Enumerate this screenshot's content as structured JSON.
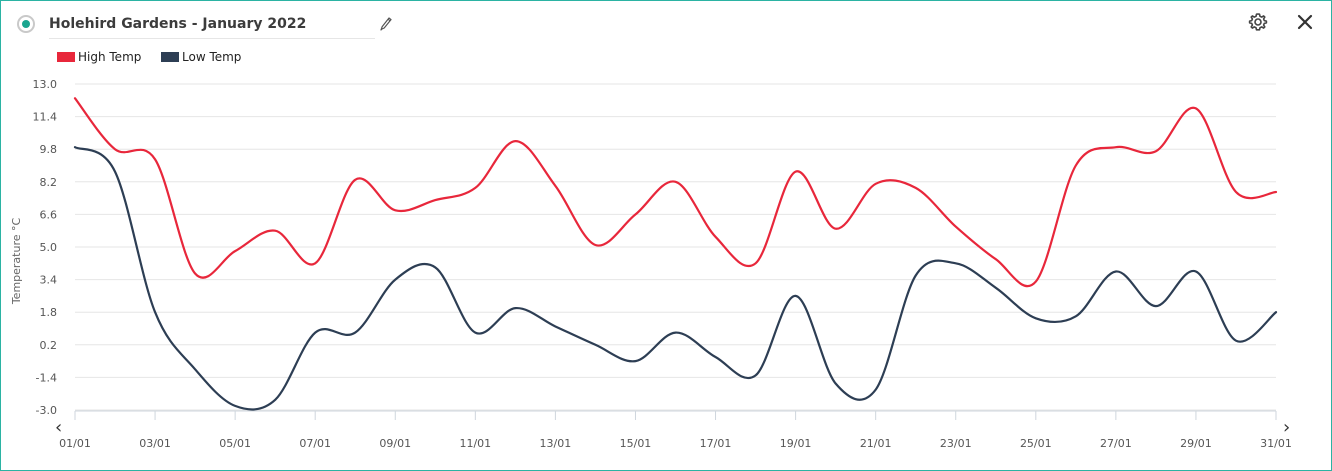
{
  "header": {
    "title": "Holehird Gardens - January 2022",
    "icons": [
      "radio-selected-icon",
      "pencil-icon",
      "gear-icon",
      "close-icon"
    ]
  },
  "navigation": {
    "prev": "‹",
    "next": "›"
  },
  "chart_data": {
    "type": "line",
    "title": "",
    "xlabel": "",
    "ylabel": "Temperature °C",
    "x": [
      "01/01",
      "02/01",
      "03/01",
      "04/01",
      "05/01",
      "06/01",
      "07/01",
      "08/01",
      "09/01",
      "10/01",
      "11/01",
      "12/01",
      "13/01",
      "14/01",
      "15/01",
      "16/01",
      "17/01",
      "18/01",
      "19/01",
      "20/01",
      "21/01",
      "22/01",
      "23/01",
      "24/01",
      "25/01",
      "26/01",
      "27/01",
      "28/01",
      "29/01",
      "30/01",
      "31/01"
    ],
    "x_tick_labels": [
      "01/01",
      "03/01",
      "05/01",
      "07/01",
      "09/01",
      "11/01",
      "13/01",
      "15/01",
      "17/01",
      "19/01",
      "21/01",
      "23/01",
      "25/01",
      "27/01",
      "29/01",
      "31/01"
    ],
    "y_ticks": [
      "13.0",
      "11.4",
      "9.8",
      "8.2",
      "6.6",
      "5.0",
      "3.4",
      "1.8",
      "0.2",
      "-1.4",
      "-3.0"
    ],
    "ylim": [
      -3.0,
      13.0
    ],
    "grid": true,
    "legend_position": "top-left",
    "series": [
      {
        "name": "High Temp",
        "color": "#e8273b",
        "points": [
          [
            "01/01",
            12.3
          ],
          [
            "02/01",
            9.8
          ],
          [
            "03/01",
            9.3
          ],
          [
            "04/01",
            3.7
          ],
          [
            "05/01",
            4.8
          ],
          [
            "06/01",
            5.8
          ],
          [
            "07/01",
            4.2
          ],
          [
            "08/01",
            8.3
          ],
          [
            "09/01",
            6.8
          ],
          [
            "10/01",
            7.3
          ],
          [
            "11/01",
            7.9
          ],
          [
            "12/01",
            10.2
          ],
          [
            "13/01",
            8.0
          ],
          [
            "14/01",
            5.1
          ],
          [
            "15/01",
            6.6
          ],
          [
            "16/01",
            8.2
          ],
          [
            "17/01",
            5.5
          ],
          [
            "18/01",
            4.2
          ],
          [
            "19/01",
            8.7
          ],
          [
            "20/01",
            5.9
          ],
          [
            "21/01",
            8.1
          ],
          [
            "22/01",
            7.9
          ],
          [
            "23/01",
            6.0
          ],
          [
            "24/01",
            4.4
          ],
          [
            "25/01",
            3.3
          ],
          [
            "26/01",
            9.0
          ],
          [
            "27/01",
            9.9
          ],
          [
            "28/01",
            9.7
          ],
          [
            "29/01",
            11.8
          ],
          [
            "30/01",
            7.7
          ],
          [
            "31/01",
            7.7
          ]
        ]
      },
      {
        "name": "Low Temp",
        "color": "#2d3e54",
        "points": [
          [
            "01/01",
            9.9
          ],
          [
            "02/01",
            8.7
          ],
          [
            "03/01",
            1.8
          ],
          [
            "04/01",
            -1.0
          ],
          [
            "05/01",
            -2.8
          ],
          [
            "06/01",
            -2.5
          ],
          [
            "07/01",
            0.8
          ],
          [
            "08/01",
            0.8
          ],
          [
            "09/01",
            3.4
          ],
          [
            "10/01",
            4.0
          ],
          [
            "11/01",
            0.8
          ],
          [
            "12/01",
            2.0
          ],
          [
            "13/01",
            1.1
          ],
          [
            "14/01",
            0.2
          ],
          [
            "15/01",
            -0.6
          ],
          [
            "16/01",
            0.8
          ],
          [
            "17/01",
            -0.4
          ],
          [
            "18/01",
            -1.3
          ],
          [
            "19/01",
            2.6
          ],
          [
            "20/01",
            -1.7
          ],
          [
            "21/01",
            -2.0
          ],
          [
            "22/01",
            3.6
          ],
          [
            "23/01",
            4.2
          ],
          [
            "24/01",
            3.0
          ],
          [
            "25/01",
            1.5
          ],
          [
            "26/01",
            1.6
          ],
          [
            "27/01",
            3.8
          ],
          [
            "28/01",
            2.1
          ],
          [
            "29/01",
            3.8
          ],
          [
            "30/01",
            0.4
          ],
          [
            "31/01",
            1.8
          ]
        ]
      }
    ]
  }
}
